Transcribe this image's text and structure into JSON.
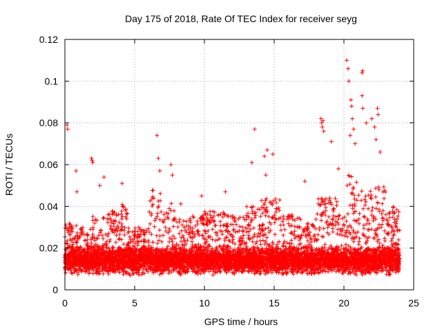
{
  "chart_data": {
    "type": "scatter",
    "title": "Day 175 of 2018, Rate Of TEC Index for receiver seyg",
    "xlabel": "GPS time / hours",
    "ylabel": "ROTI / TECUs",
    "xlim": [
      0,
      25
    ],
    "ylim": [
      0,
      0.12
    ],
    "grid": true,
    "marker": "plus",
    "marker_color": "#ff0000",
    "x_ticks": [
      0,
      5,
      10,
      15,
      20,
      25
    ],
    "x_tick_labels": [
      "0",
      "5",
      "10",
      "15",
      "20",
      "25"
    ],
    "y_ticks": [
      0,
      0.02,
      0.04,
      0.06,
      0.08,
      0.1,
      0.12
    ],
    "y_tick_labels": [
      "0",
      "0.02",
      "0.04",
      "0.06",
      "0.08",
      "0.1",
      "0.12"
    ],
    "series": [
      {
        "name": "ROTI",
        "x_range": [
          0,
          24
        ],
        "baseline": 0.014,
        "spread": 0.006,
        "segments": [
          {
            "x": [
              0.0,
              0.4
            ],
            "upper": 0.032
          },
          {
            "x": [
              0.4,
              1.0
            ],
            "upper": 0.034
          },
          {
            "x": [
              1.0,
              2.0
            ],
            "upper": 0.03
          },
          {
            "x": [
              2.0,
              3.0
            ],
            "upper": 0.036
          },
          {
            "x": [
              3.0,
              4.0
            ],
            "upper": 0.038
          },
          {
            "x": [
              4.0,
              4.5
            ],
            "upper": 0.042
          },
          {
            "x": [
              4.5,
              6.0
            ],
            "upper": 0.03
          },
          {
            "x": [
              6.0,
              7.0
            ],
            "upper": 0.048
          },
          {
            "x": [
              7.0,
              8.5
            ],
            "upper": 0.042
          },
          {
            "x": [
              8.5,
              10.0
            ],
            "upper": 0.036
          },
          {
            "x": [
              10.0,
              11.5
            ],
            "upper": 0.038
          },
          {
            "x": [
              11.5,
              13.0
            ],
            "upper": 0.036
          },
          {
            "x": [
              13.0,
              14.0
            ],
            "upper": 0.04
          },
          {
            "x": [
              14.0,
              15.5
            ],
            "upper": 0.044
          },
          {
            "x": [
              15.5,
              17.0
            ],
            "upper": 0.036
          },
          {
            "x": [
              17.0,
              18.0
            ],
            "upper": 0.032
          },
          {
            "x": [
              18.0,
              19.5
            ],
            "upper": 0.044
          },
          {
            "x": [
              19.5,
              20.2
            ],
            "upper": 0.036
          },
          {
            "x": [
              20.2,
              21.0
            ],
            "upper": 0.055
          },
          {
            "x": [
              21.0,
              22.0
            ],
            "upper": 0.048
          },
          {
            "x": [
              22.0,
              23.0
            ],
            "upper": 0.05
          },
          {
            "x": [
              23.0,
              24.0
            ],
            "upper": 0.04
          }
        ],
        "spikes": [
          {
            "x": 0.15,
            "y": 0.079
          },
          {
            "x": 0.2,
            "y": 0.077
          },
          {
            "x": 0.8,
            "y": 0.057
          },
          {
            "x": 0.85,
            "y": 0.047
          },
          {
            "x": 1.9,
            "y": 0.063
          },
          {
            "x": 1.95,
            "y": 0.062
          },
          {
            "x": 2.0,
            "y": 0.061
          },
          {
            "x": 2.5,
            "y": 0.05
          },
          {
            "x": 2.8,
            "y": 0.054
          },
          {
            "x": 4.1,
            "y": 0.051
          },
          {
            "x": 6.6,
            "y": 0.074
          },
          {
            "x": 6.7,
            "y": 0.063
          },
          {
            "x": 6.8,
            "y": 0.057
          },
          {
            "x": 7.6,
            "y": 0.06
          },
          {
            "x": 7.7,
            "y": 0.055
          },
          {
            "x": 9.8,
            "y": 0.045
          },
          {
            "x": 11.5,
            "y": 0.047
          },
          {
            "x": 13.4,
            "y": 0.061
          },
          {
            "x": 13.6,
            "y": 0.077
          },
          {
            "x": 14.3,
            "y": 0.064
          },
          {
            "x": 14.5,
            "y": 0.067
          },
          {
            "x": 14.9,
            "y": 0.065
          },
          {
            "x": 14.4,
            "y": 0.055
          },
          {
            "x": 17.2,
            "y": 0.052
          },
          {
            "x": 18.35,
            "y": 0.082
          },
          {
            "x": 18.4,
            "y": 0.08
          },
          {
            "x": 18.45,
            "y": 0.078
          },
          {
            "x": 18.5,
            "y": 0.081
          },
          {
            "x": 18.55,
            "y": 0.076
          },
          {
            "x": 19.1,
            "y": 0.071
          },
          {
            "x": 19.6,
            "y": 0.058
          },
          {
            "x": 20.2,
            "y": 0.11
          },
          {
            "x": 20.3,
            "y": 0.106
          },
          {
            "x": 20.35,
            "y": 0.1
          },
          {
            "x": 20.5,
            "y": 0.091
          },
          {
            "x": 20.55,
            "y": 0.088
          },
          {
            "x": 20.6,
            "y": 0.082
          },
          {
            "x": 20.7,
            "y": 0.077
          },
          {
            "x": 20.45,
            "y": 0.074
          },
          {
            "x": 20.8,
            "y": 0.07
          },
          {
            "x": 21.3,
            "y": 0.104
          },
          {
            "x": 21.35,
            "y": 0.105
          },
          {
            "x": 21.3,
            "y": 0.093
          },
          {
            "x": 21.35,
            "y": 0.087
          },
          {
            "x": 21.6,
            "y": 0.08
          },
          {
            "x": 22.0,
            "y": 0.082
          },
          {
            "x": 22.4,
            "y": 0.087
          },
          {
            "x": 22.45,
            "y": 0.084
          },
          {
            "x": 22.3,
            "y": 0.072
          },
          {
            "x": 22.2,
            "y": 0.078
          },
          {
            "x": 22.6,
            "y": 0.066
          }
        ]
      }
    ]
  }
}
